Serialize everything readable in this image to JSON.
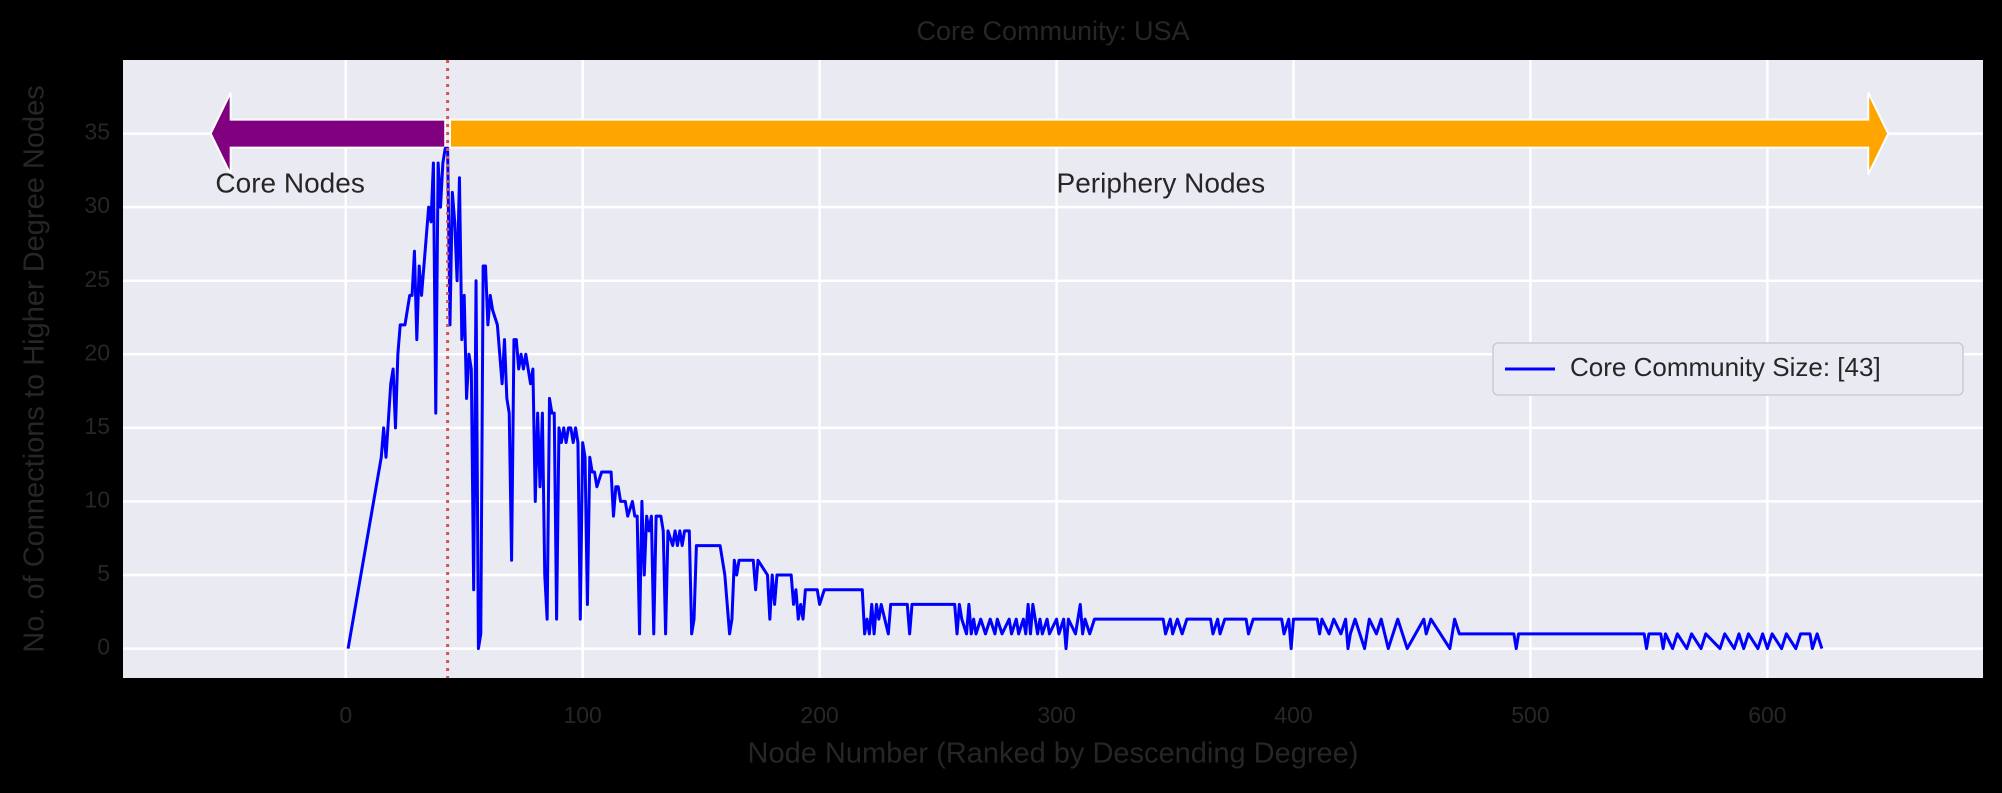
{
  "chart_data": {
    "type": "line",
    "title": "Core Community: USA",
    "x_label": "Node Number (Ranked by Descending Degree)",
    "y_label": "No. of Connections to Higher Degree Nodes",
    "xlim": [
      -94,
      691
    ],
    "ylim": [
      -2,
      40
    ],
    "xticks": [
      0,
      100,
      200,
      300,
      400,
      500,
      600
    ],
    "yticks": [
      0,
      5,
      10,
      15,
      20,
      25,
      30,
      35
    ],
    "grid": true,
    "legend_position": "center right",
    "series": [
      {
        "name": "Core Community Size: [43]",
        "color": "#0000ff",
        "x": [
          1,
          15,
          16,
          17,
          19,
          20,
          21,
          22,
          23,
          25,
          27,
          28,
          29,
          30,
          31,
          32,
          33,
          34,
          35,
          36,
          37,
          38,
          39,
          40,
          41,
          42,
          43,
          44,
          45,
          46,
          47,
          48,
          49,
          50,
          51,
          52,
          53,
          54,
          55,
          56,
          57,
          58,
          59,
          60,
          61,
          62,
          64,
          66,
          67,
          68,
          69,
          70,
          71,
          72,
          73,
          74,
          75,
          76,
          77,
          78,
          79,
          80,
          81,
          82,
          83,
          84,
          85,
          86,
          87,
          88,
          89,
          90,
          91,
          92,
          93,
          94,
          95,
          96,
          97,
          98,
          99,
          100,
          101,
          102,
          103,
          104,
          105,
          106,
          108,
          112,
          113,
          114,
          115,
          116,
          118,
          119,
          121,
          122,
          123,
          124,
          125,
          126,
          127,
          128,
          129,
          130,
          131,
          133,
          134,
          135,
          136,
          138,
          139,
          140,
          141,
          142,
          143,
          145,
          146,
          147,
          148,
          158,
          160,
          162,
          163,
          164,
          165,
          166,
          172,
          173,
          174,
          178,
          179,
          180,
          181,
          182,
          188,
          189,
          190,
          191,
          192,
          193,
          194,
          199,
          200,
          202,
          218,
          219,
          220,
          221,
          222,
          223,
          224,
          225,
          226,
          229,
          230,
          237,
          238,
          239,
          257,
          258,
          259,
          260,
          262,
          263,
          264,
          265,
          266,
          268,
          270,
          272,
          274,
          275,
          277,
          280,
          281,
          283,
          284,
          286,
          287,
          288,
          289,
          290,
          292,
          293,
          294,
          296,
          297,
          300,
          301,
          303,
          304,
          305,
          308,
          310,
          311,
          312,
          314,
          316,
          345,
          346,
          348,
          349,
          351,
          353,
          355,
          365,
          366,
          368,
          369,
          371,
          380,
          381,
          383,
          395,
          396,
          398,
          399,
          400,
          410,
          411,
          412,
          415,
          417,
          420,
          422,
          423,
          424,
          426,
          428,
          430,
          432,
          435,
          437,
          440,
          442,
          444,
          448,
          455,
          456,
          458,
          462,
          466,
          468,
          470,
          493,
          494,
          495,
          548,
          549,
          550,
          555,
          556,
          557,
          560,
          562,
          566,
          568,
          572,
          574,
          580,
          582,
          586,
          588,
          590,
          592,
          596,
          598,
          600,
          602,
          606,
          608,
          612,
          614,
          618,
          619,
          621,
          623
        ],
        "values": [
          0,
          13,
          15,
          13,
          18,
          19,
          15,
          20,
          22,
          22,
          24,
          24,
          27,
          21,
          26,
          24,
          26,
          28,
          30,
          29,
          33,
          16,
          33,
          30,
          33,
          34,
          34,
          22,
          31,
          29,
          25,
          32,
          21,
          24,
          17,
          20,
          19,
          4,
          25,
          0,
          1,
          26,
          26,
          22,
          24,
          23,
          22,
          18,
          21,
          17,
          16,
          6,
          21,
          21,
          19,
          20,
          19,
          20,
          19,
          18,
          19,
          10,
          16,
          11,
          16,
          5,
          2,
          17,
          16,
          16,
          2,
          15,
          14,
          15,
          14,
          15,
          15,
          14,
          15,
          14,
          2,
          14,
          13,
          3,
          13,
          12,
          12,
          11,
          12,
          12,
          9,
          11,
          11,
          10,
          10,
          9,
          10,
          9,
          9,
          1,
          10,
          5,
          9,
          8,
          9,
          1,
          9,
          9,
          8,
          1,
          8,
          7,
          8,
          7,
          8,
          7,
          8,
          8,
          1,
          2,
          7,
          7,
          5,
          1,
          2,
          6,
          5,
          6,
          6,
          4,
          6,
          5,
          2,
          5,
          3,
          5,
          5,
          3,
          4,
          2,
          3,
          2,
          4,
          4,
          3,
          4,
          4,
          1,
          2,
          1,
          3,
          1,
          3,
          2,
          3,
          1,
          3,
          3,
          1,
          3,
          3,
          1,
          3,
          2,
          1,
          3,
          1,
          2,
          1,
          2,
          1,
          2,
          1,
          2,
          1,
          2,
          1,
          2,
          1,
          2,
          1,
          3,
          1,
          3,
          1,
          2,
          1,
          2,
          1,
          2,
          1,
          2,
          0,
          2,
          1,
          3,
          1,
          2,
          1,
          2,
          2,
          1,
          2,
          1,
          2,
          1,
          2,
          2,
          1,
          2,
          1,
          2,
          2,
          1,
          2,
          2,
          1,
          2,
          0,
          2,
          2,
          1,
          2,
          1,
          2,
          1,
          2,
          0,
          1,
          2,
          1,
          0,
          2,
          1,
          2,
          0,
          1,
          2,
          0,
          2,
          1,
          2,
          1,
          0,
          2,
          1,
          1,
          0,
          1,
          1,
          0,
          1,
          1,
          0,
          1,
          0,
          1,
          0,
          1,
          0,
          1,
          0,
          1,
          0,
          1,
          0,
          1,
          0,
          1,
          0,
          1,
          0,
          1,
          0,
          1,
          1,
          0,
          1,
          0
        ]
      }
    ],
    "vline": {
      "x": 43,
      "color": "#d9534f"
    },
    "arrows": [
      {
        "x_start": 42,
        "x_end": -57,
        "y": 35,
        "color": "#800080"
      },
      {
        "x_start": 44,
        "x_end": 651,
        "y": 35,
        "color": "#ffa500"
      }
    ],
    "annotations": [
      {
        "text": "Core Nodes",
        "x": -55,
        "y": 31.5
      },
      {
        "text": "Periphery Nodes",
        "x": 300,
        "y": 31.5
      }
    ]
  }
}
